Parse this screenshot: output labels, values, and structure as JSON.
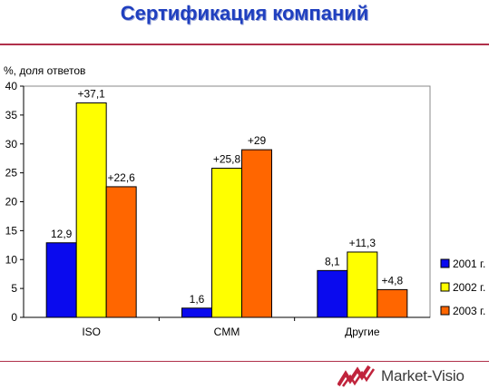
{
  "header": {
    "title": "Сертификация компаний"
  },
  "brand": {
    "name": "Market-Visio",
    "accent": "#c0243c"
  },
  "chart_data": {
    "type": "bar",
    "ylabel": "%, доля ответов",
    "xlabel": "",
    "ylim": [
      0,
      40
    ],
    "yticks": [
      0,
      5,
      10,
      15,
      20,
      25,
      30,
      35,
      40
    ],
    "categories": [
      "ISO",
      "CMM",
      "Другие"
    ],
    "series": [
      {
        "name": "2001 г.",
        "color": "#0a0aee",
        "values": [
          12.9,
          1.6,
          8.1
        ],
        "labels": [
          "12,9",
          "1,6",
          "8,1"
        ]
      },
      {
        "name": "2002 г.",
        "color": "#ffff00",
        "values": [
          37.1,
          25.8,
          11.3
        ],
        "labels": [
          "+37,1",
          "+25,8",
          "+11,3"
        ]
      },
      {
        "name": "2003 г.",
        "color": "#ff6600",
        "values": [
          22.6,
          29,
          4.8
        ],
        "labels": [
          "+22,6",
          "+29",
          "+4,8"
        ]
      }
    ],
    "legend": "right",
    "grid": false
  }
}
